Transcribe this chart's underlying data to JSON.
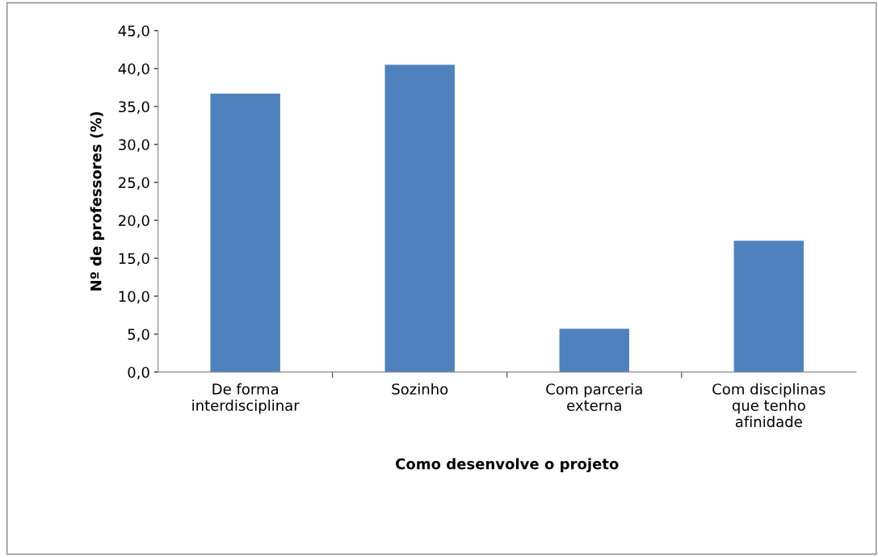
{
  "chart_data": {
    "type": "bar",
    "xlabel": "Como desenvolve o projeto",
    "ylabel": "Nº de professores (%)",
    "categories": [
      "De forma\ninterdisciplinar",
      "Sozinho",
      "Com parceria\nexterna",
      "Com disciplinas\nque tenho\nafinidade"
    ],
    "values": [
      36.7,
      40.5,
      5.7,
      17.3
    ],
    "color": "#4f81bd",
    "ylim": [
      0,
      45
    ],
    "yticks": [
      {
        "value": 0,
        "label": "0,0"
      },
      {
        "value": 5,
        "label": "5,0"
      },
      {
        "value": 10,
        "label": "10,0"
      },
      {
        "value": 15,
        "label": "15,0"
      },
      {
        "value": 20,
        "label": "20,0"
      },
      {
        "value": 25,
        "label": "25,0"
      },
      {
        "value": 30,
        "label": "30,0"
      },
      {
        "value": 35,
        "label": "35,0"
      },
      {
        "value": 40,
        "label": "40,0"
      },
      {
        "value": 45,
        "label": "45,0"
      }
    ],
    "grid": false,
    "legend": false
  }
}
